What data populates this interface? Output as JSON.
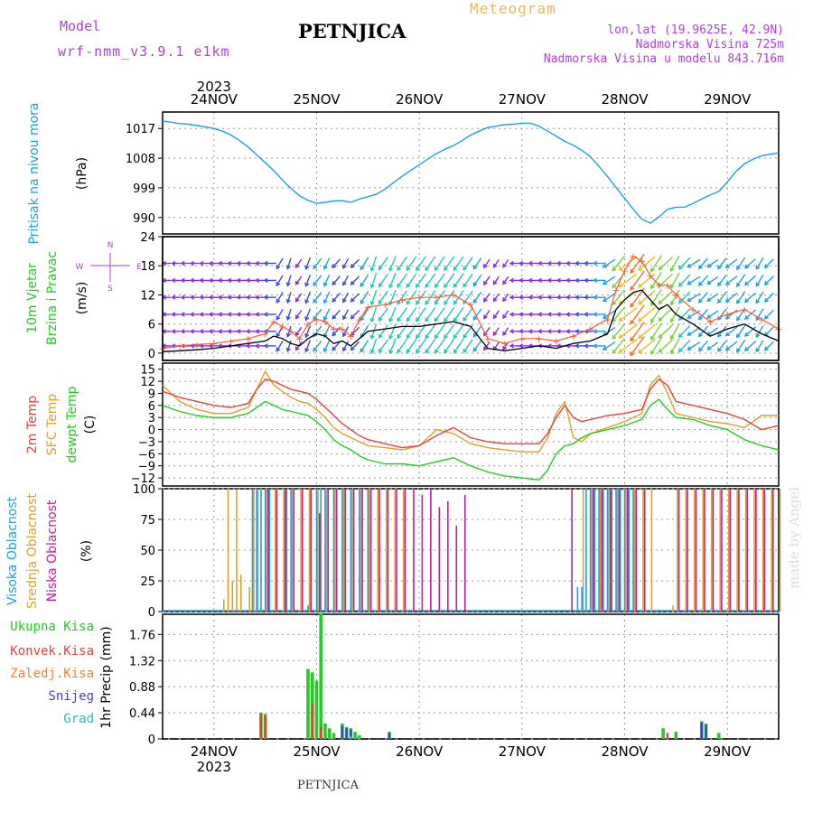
{
  "header": {
    "model_label": "Model",
    "model_name": "wrf-nmm_v3.9.1 e1km",
    "title": "Meteogram",
    "location": "PETNJICA",
    "lonlat": "lon,lat (19.9625E, 42.9N)",
    "elevation": "Nadmorska Visina 725m",
    "model_elevation": "Nadmorska Visina u modelu 843.716m"
  },
  "footer": {
    "location": "PETNJICA",
    "watermark": "made by Angel"
  },
  "colors": {
    "pressure": "#1ca0e6",
    "temp2m": "#e8413c",
    "sfc_temp": "#e0a028",
    "dewpt": "#22cc22",
    "wind_speed": "#000000",
    "gust": "#ff5a32",
    "cloud_high": "#1ca0e6",
    "cloud_mid": "#e0a028",
    "cloud_low": "#c01c9c",
    "precip_total": "#22cc22",
    "precip_conv": "#e8413c",
    "precip_frz": "#ff7f27",
    "snow": "#4040d8",
    "hail": "#20c0c0",
    "model_label": "#b040d8"
  },
  "chart_data": [
    {
      "type": "line",
      "panel": "pressure",
      "ylabel_left": "Pritisak na nivou mora",
      "ylabel_unit": "(hPa)",
      "yticks": [
        990,
        999,
        1008,
        1017
      ],
      "ylim": [
        985,
        1022
      ],
      "xlim": [
        0,
        144
      ],
      "x": [
        0,
        2,
        4,
        6,
        8,
        10,
        12,
        14,
        16,
        18,
        20,
        22,
        24,
        26,
        28,
        30,
        32,
        34,
        36,
        38,
        40,
        42,
        44,
        46,
        48,
        50,
        52,
        54,
        56,
        58,
        60,
        62,
        64,
        66,
        68,
        70,
        72,
        74,
        76,
        78,
        80,
        82,
        84,
        86,
        88,
        90,
        92,
        94,
        96,
        98,
        100,
        102,
        104,
        106,
        108,
        110,
        112,
        114,
        116,
        118,
        120,
        122,
        124,
        126,
        128,
        130,
        132,
        134,
        136,
        138,
        140,
        142,
        144
      ],
      "values": [
        1019.3,
        1018.9,
        1018.5,
        1018.3,
        1017.9,
        1017.5,
        1017.0,
        1016.2,
        1015.0,
        1013.3,
        1011.4,
        1009.0,
        1006.6,
        1004.2,
        1001.4,
        998.8,
        996.6,
        995.2,
        994.3,
        994.6,
        995.0,
        995.1,
        994.6,
        995.6,
        996.3,
        997.1,
        998.6,
        1000.6,
        1002.5,
        1004.3,
        1006.0,
        1007.7,
        1009.4,
        1010.7,
        1011.8,
        1013.3,
        1015.0,
        1016.2,
        1017.3,
        1017.7,
        1018.2,
        1018.3,
        1018.6,
        1018.6,
        1017.7,
        1016.2,
        1014.7,
        1013.1,
        1011.9,
        1010.4,
        1008.4,
        1005.5,
        1002.4,
        999.1,
        995.8,
        992.5,
        989.5,
        988.3,
        990.1,
        992.5,
        993.1,
        993.1,
        994.3,
        995.6,
        996.8,
        997.9,
        1000.8,
        1003.9,
        1006.3,
        1007.7,
        1008.7,
        1009.2,
        1009.6
      ]
    },
    {
      "type": "line",
      "panel": "wind",
      "ylabel_left": [
        "10m Vjetar",
        "Brzina i Pravac"
      ],
      "ylabel_unit": "(m/s)",
      "compass": [
        "N",
        "S",
        "W",
        "E"
      ],
      "yticks": [
        0,
        6,
        12,
        18,
        24
      ],
      "ylim": [
        -1.5,
        24
      ],
      "xlim": [
        0,
        144
      ],
      "x": [
        0,
        4,
        8,
        12,
        16,
        20,
        24,
        26,
        28,
        30,
        32,
        34,
        36,
        38,
        40,
        42,
        44,
        46,
        48,
        52,
        56,
        60,
        64,
        68,
        72,
        76,
        80,
        84,
        88,
        92,
        96,
        100,
        104,
        106,
        108,
        110,
        112,
        114,
        116,
        118,
        120,
        124,
        128,
        132,
        136,
        140,
        144
      ],
      "series": [
        {
          "name": "speed",
          "values": [
            0.3,
            0.5,
            0.7,
            1.0,
            1.5,
            2.0,
            2.5,
            3.5,
            3.0,
            2.0,
            1.5,
            3.0,
            4.0,
            3.5,
            2.0,
            2.5,
            1.5,
            3.0,
            4.5,
            5.0,
            5.5,
            5.5,
            6.0,
            6.5,
            5.5,
            1.0,
            0.5,
            1.0,
            1.5,
            1.0,
            2.0,
            2.5,
            4.0,
            9.0,
            11.0,
            12.5,
            13.0,
            11.0,
            9.0,
            10.0,
            8.0,
            6.0,
            3.5,
            5.0,
            6.0,
            4.0,
            2.5
          ]
        },
        {
          "name": "gust",
          "values": [
            1.0,
            1.5,
            1.8,
            2.0,
            2.5,
            3.0,
            4.0,
            6.5,
            5.5,
            4.5,
            3.0,
            6.0,
            7.0,
            6.5,
            5.0,
            5.0,
            3.5,
            7.0,
            9.5,
            10.0,
            11.0,
            11.5,
            11.5,
            12.0,
            10.0,
            3.0,
            2.0,
            3.0,
            3.0,
            2.5,
            3.5,
            5.0,
            7.0,
            13.0,
            17.0,
            20.0,
            19.0,
            16.0,
            14.0,
            14.0,
            12.0,
            9.0,
            6.5,
            8.0,
            9.0,
            7.0,
            5.0
          ]
        }
      ]
    },
    {
      "type": "line",
      "panel": "temperature",
      "ylabel_left": [
        "2m Temp",
        "SFC Temp",
        "dewpt Temp"
      ],
      "ylabel_unit": "(C)",
      "yticks": [
        -12,
        -9,
        -6,
        -3,
        0,
        3,
        6,
        9,
        12,
        15
      ],
      "ylim": [
        -14,
        16.5
      ],
      "xlim": [
        0,
        144
      ],
      "x": [
        0,
        4,
        8,
        12,
        16,
        20,
        22,
        24,
        26,
        28,
        30,
        32,
        34,
        36,
        38,
        40,
        42,
        44,
        46,
        48,
        52,
        56,
        60,
        64,
        68,
        72,
        76,
        80,
        84,
        88,
        90,
        92,
        94,
        96,
        98,
        100,
        104,
        108,
        112,
        114,
        116,
        118,
        120,
        124,
        128,
        132,
        136,
        140,
        144
      ],
      "series": [
        {
          "name": "2m Temp",
          "values": [
            9.5,
            8.0,
            7.0,
            6.0,
            5.5,
            6.5,
            10.0,
            12.5,
            12.0,
            11.0,
            10.0,
            9.5,
            9.0,
            7.5,
            5.5,
            3.5,
            1.5,
            0,
            -1.5,
            -2.5,
            -3.5,
            -4.5,
            -4.0,
            -1.5,
            0.5,
            -2.0,
            -3.0,
            -3.5,
            -3.5,
            -3.5,
            -1.0,
            3.0,
            6.0,
            3.0,
            2.0,
            2.5,
            3.5,
            4.0,
            5.0,
            10.0,
            12.5,
            11.0,
            7.0,
            6.0,
            5.0,
            4.0,
            2.5,
            0,
            1.0
          ]
        },
        {
          "name": "SFC Temp",
          "values": [
            11.0,
            7.0,
            5.0,
            4.0,
            4.0,
            5.5,
            10.0,
            14.5,
            11.0,
            9.5,
            8.0,
            7.0,
            6.5,
            5.0,
            3.0,
            0.5,
            -1.0,
            -2.0,
            -3.0,
            -4.0,
            -4.5,
            -5.0,
            -4.0,
            0,
            -1.0,
            -3.5,
            -4.5,
            -5.0,
            -5.5,
            -5.5,
            -2.0,
            4.0,
            7.0,
            -2.0,
            -3.0,
            -1.0,
            0.5,
            2.0,
            4.0,
            11.0,
            13.5,
            9.0,
            4.0,
            3.0,
            2.0,
            1.5,
            0.5,
            3.5,
            3.5
          ]
        },
        {
          "name": "dewpt Temp",
          "values": [
            6.0,
            4.5,
            3.5,
            3.0,
            3.0,
            4.0,
            5.5,
            7.0,
            6.0,
            5.0,
            4.5,
            4.0,
            3.5,
            2.0,
            0,
            -2.5,
            -4.0,
            -5.0,
            -6.5,
            -7.5,
            -8.5,
            -8.5,
            -9.0,
            -8.0,
            -7.0,
            -9.0,
            -10.5,
            -11.5,
            -12.0,
            -12.5,
            -10.0,
            -6.0,
            -4.0,
            -3.5,
            -2.0,
            -1.0,
            0,
            1.0,
            2.5,
            6.0,
            7.5,
            5.0,
            3.0,
            2.5,
            1.0,
            0,
            -2.5,
            -4.0,
            -5.0
          ]
        }
      ]
    },
    {
      "type": "bar",
      "panel": "clouds",
      "ylabel_left": [
        "Visoka Oblacnost",
        "Srednja Oblacnost",
        "Niska Oblacnost"
      ],
      "ylabel_unit": "(%)",
      "yticks": [
        0,
        25,
        50,
        75,
        100
      ],
      "ylim": [
        0,
        100
      ],
      "xlim": [
        0,
        144
      ],
      "series": [
        {
          "name": "Visoka Oblacnost",
          "x": [
            21,
            22,
            23,
            24,
            25,
            29,
            30,
            34,
            36,
            37,
            38,
            40,
            42,
            44,
            46,
            48,
            97,
            98,
            99,
            100,
            101,
            102,
            103,
            104,
            105,
            106,
            107,
            108,
            109,
            110
          ],
          "values": [
            100,
            100,
            100,
            100,
            100,
            100,
            100,
            5,
            100,
            100,
            100,
            100,
            100,
            100,
            100,
            100,
            20,
            20,
            100,
            100,
            100,
            100,
            100,
            100,
            100,
            100,
            100,
            100,
            100,
            100
          ]
        },
        {
          "name": "Srednja Oblacnost",
          "x": [
            14,
            15,
            16,
            17,
            18,
            20,
            21,
            22,
            24,
            26,
            28,
            30,
            32,
            34,
            36,
            38,
            40,
            42,
            44,
            46,
            48,
            50,
            52,
            54,
            56,
            98,
            100,
            102,
            104,
            106,
            108,
            110,
            112,
            114,
            119,
            120,
            122,
            124,
            126,
            128,
            130,
            132,
            134,
            136,
            138,
            140,
            142,
            144
          ],
          "values": [
            10,
            100,
            25,
            100,
            30,
            20,
            100,
            100,
            100,
            100,
            100,
            100,
            100,
            100,
            100,
            100,
            100,
            100,
            100,
            100,
            100,
            100,
            100,
            100,
            100,
            100,
            100,
            100,
            100,
            100,
            100,
            100,
            100,
            100,
            5,
            100,
            100,
            100,
            100,
            100,
            100,
            100,
            100,
            100,
            100,
            100,
            100,
            100
          ]
        },
        {
          "name": "Niska Oblacnost",
          "x": [
            25,
            27,
            29,
            31,
            33,
            35,
            37,
            39,
            41,
            43,
            45,
            47,
            49,
            51,
            53,
            55,
            57,
            59,
            61,
            63,
            65,
            67,
            69,
            71,
            96,
            101,
            103,
            105,
            107,
            109,
            111,
            113,
            121,
            123,
            125,
            127,
            129,
            131,
            133,
            135,
            137,
            139,
            141,
            143
          ],
          "values": [
            100,
            100,
            100,
            100,
            100,
            100,
            80,
            100,
            100,
            100,
            100,
            100,
            100,
            100,
            100,
            100,
            100,
            100,
            95,
            100,
            85,
            90,
            70,
            95,
            100,
            100,
            100,
            100,
            100,
            100,
            100,
            100,
            100,
            100,
            100,
            100,
            100,
            100,
            100,
            100,
            100,
            100,
            100,
            100
          ]
        }
      ]
    },
    {
      "type": "bar",
      "panel": "precipitation",
      "ylabel_unit": "1hr Precip (mm)",
      "legend": [
        "Ukupna Kisa",
        "Konvek.Kisa",
        "Zaledj.Kisa",
        "Snijeg",
        "Grad"
      ],
      "yticks": [
        0,
        0.44,
        0.88,
        1.32,
        1.76
      ],
      "ylim": [
        0,
        2.1
      ],
      "xlim": [
        0,
        144
      ],
      "x_labels": [
        "24NOV",
        "25NOV",
        "26NOV",
        "27NOV",
        "28NOV",
        "29NOV"
      ],
      "year": "2023",
      "series": [
        {
          "name": "Ukupna Kisa",
          "x": [
            23,
            24,
            34,
            35,
            36,
            37,
            38,
            39,
            40,
            42,
            43,
            44,
            45,
            46,
            53,
            117,
            120,
            126,
            127,
            130
          ],
          "values": [
            0.44,
            0.42,
            1.18,
            1.12,
            0.98,
            2.12,
            0.26,
            0.18,
            0.1,
            0.26,
            0.2,
            0.18,
            0.12,
            0.06,
            0.12,
            0.18,
            0.12,
            0.3,
            0.26,
            0.1
          ]
        },
        {
          "name": "Konvek.Kisa",
          "x": [
            23,
            24,
            35,
            37,
            118
          ],
          "values": [
            0.42,
            0.4,
            0.6,
            0.2,
            0.1
          ]
        },
        {
          "name": "Snijeg",
          "x": [
            42,
            43,
            44,
            53,
            126,
            127
          ],
          "values": [
            0.22,
            0.18,
            0.16,
            0.1,
            0.28,
            0.24
          ]
        },
        {
          "name": "Grad",
          "x": [
            44,
            45,
            46
          ],
          "values": [
            0.04,
            0.03,
            0.02
          ]
        }
      ]
    }
  ]
}
